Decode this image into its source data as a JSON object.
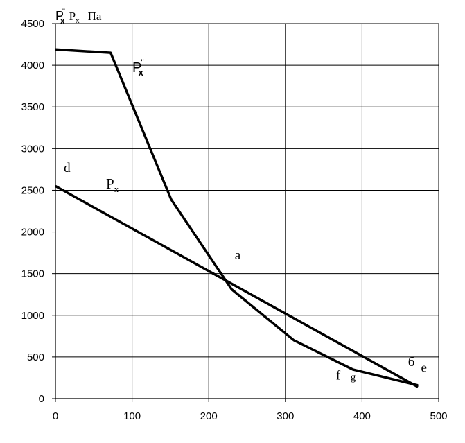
{
  "chart_data": {
    "type": "line",
    "xlim": [
      0,
      500
    ],
    "ylim": [
      0,
      4500
    ],
    "x_ticks": [
      "0",
      "100",
      "200",
      "300",
      "400",
      "500"
    ],
    "y_ticks": [
      "0",
      "500",
      "1000",
      "1500",
      "2000",
      "2500",
      "3000",
      "3500",
      "4000",
      "4500"
    ],
    "grid": true,
    "legend": "none",
    "ylabel": {
      "base1": "P",
      "sub1": "x",
      "sup1": "\"",
      "base2": "P",
      "sub2": "x",
      "unit": "Па"
    },
    "series": [
      {
        "label_base": "P",
        "label_sub": "x",
        "label_sup": "\"",
        "color": "#000000",
        "points": [
          [
            0,
            4190
          ],
          [
            72,
            4150
          ],
          [
            151,
            2390
          ],
          [
            230,
            1310
          ],
          [
            311,
            700
          ],
          [
            388,
            350
          ],
          [
            473,
            160
          ]
        ]
      },
      {
        "label_base": "P",
        "label_sub": "x",
        "color": "#000000",
        "points": [
          [
            0,
            2550
          ],
          [
            473,
            140
          ]
        ]
      }
    ],
    "point_letters": [
      {
        "text": "d",
        "x": 11,
        "y": 2720
      },
      {
        "text": "a",
        "x": 234,
        "y": 1670
      },
      {
        "text": "б",
        "x": 460,
        "y": 390
      },
      {
        "text": "е",
        "x": 477,
        "y": 320
      },
      {
        "text": "f",
        "x": 366,
        "y": 230
      },
      {
        "text": "g",
        "x": 385,
        "y": 220
      }
    ]
  }
}
